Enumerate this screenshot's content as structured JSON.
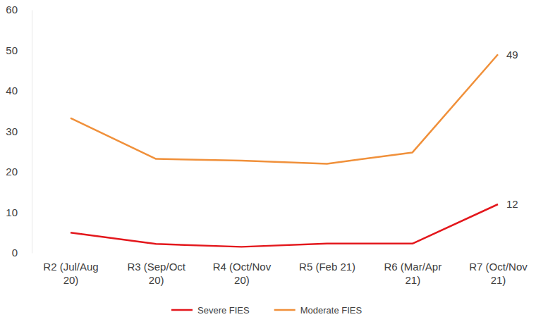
{
  "chart_data": {
    "type": "line",
    "categories": [
      "R2 (Jul/Aug 20)",
      "R3 (Sep/Oct 20)",
      "R4 (Oct/Nov 20)",
      "R5 (Feb 21)",
      "R6 (Mar/Apr 21)",
      "R7 (Oct/Nov 21)"
    ],
    "series": [
      {
        "name": "Severe FIES",
        "color": "#e3171c",
        "values": [
          5,
          2.2,
          1.5,
          2.3,
          2.3,
          12
        ],
        "value_labels": [
          null,
          null,
          null,
          null,
          null,
          "12"
        ]
      },
      {
        "name": "Moderate FIES",
        "color": "#f0903a",
        "values": [
          33.3,
          23.2,
          22.8,
          22,
          24.8,
          49
        ],
        "value_labels": [
          null,
          null,
          null,
          null,
          null,
          "49"
        ]
      }
    ],
    "ylim": [
      0,
      60
    ],
    "yticks": [
      0,
      10,
      20,
      30,
      40,
      50,
      60
    ],
    "grid": false,
    "legend": "bottom",
    "data_labels": true
  }
}
